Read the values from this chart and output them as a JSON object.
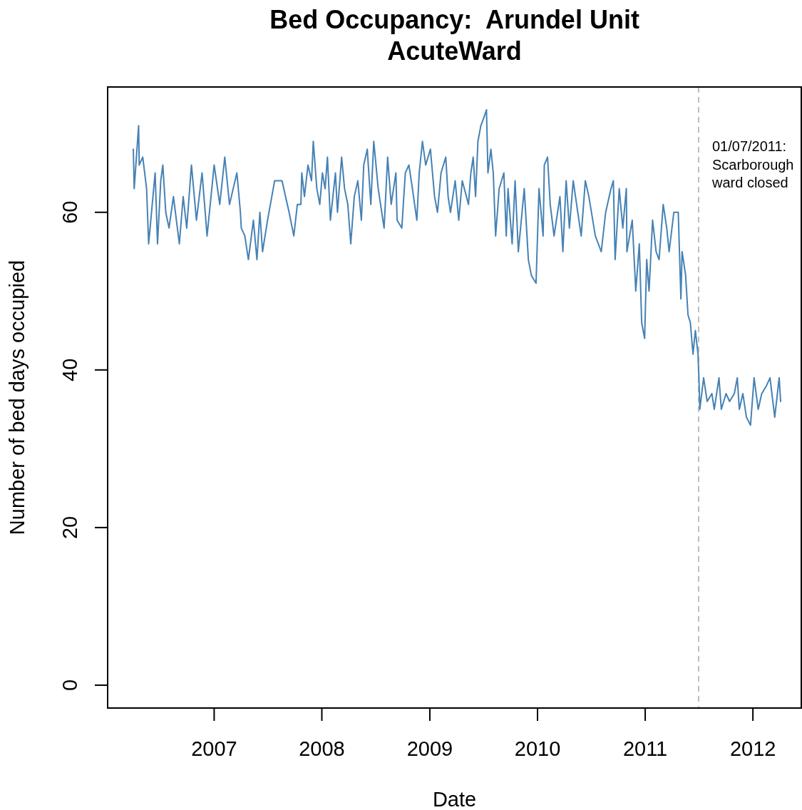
{
  "chart_data": {
    "type": "line",
    "title": "Bed Occupancy:  Arundel Unit\nAcuteWard",
    "xlabel": "Date",
    "ylabel": "Number of bed days occupied",
    "color": "#4682b4",
    "x": [
      "2006-04-02",
      "2006-04-05",
      "2006-04-20",
      "2006-04-22",
      "2006-05-04",
      "2006-05-17",
      "2006-05-24",
      "2006-06-10",
      "2006-06-15",
      "2006-06-23",
      "2006-07-04",
      "2006-07-11",
      "2006-07-21",
      "2006-08-01",
      "2006-08-16",
      "2006-09-05",
      "2006-09-18",
      "2006-09-30",
      "2006-10-16",
      "2006-11-02",
      "2006-11-21",
      "2006-12-08",
      "2007-01-01",
      "2007-01-20",
      "2007-02-06",
      "2007-02-22",
      "2007-03-19",
      "2007-03-31",
      "2007-04-03",
      "2007-04-15",
      "2007-04-27",
      "2007-05-14",
      "2007-05-26",
      "2007-06-05",
      "2007-06-14",
      "2007-07-01",
      "2007-07-25",
      "2007-08-19",
      "2007-09-12",
      "2007-09-28",
      "2007-10-10",
      "2007-10-22",
      "2007-10-25",
      "2007-11-03",
      "2007-11-15",
      "2007-11-27",
      "2007-12-03",
      "2007-12-15",
      "2007-12-25",
      "2008-01-03",
      "2008-01-12",
      "2008-01-20",
      "2008-01-30",
      "2008-02-16",
      "2008-02-23",
      "2008-03-08",
      "2008-03-18",
      "2008-03-29",
      "2008-04-08",
      "2008-04-20",
      "2008-05-02",
      "2008-05-14",
      "2008-05-22",
      "2008-06-03",
      "2008-06-15",
      "2008-06-25",
      "2008-07-10",
      "2008-07-30",
      "2008-08-11",
      "2008-08-23",
      "2008-09-08",
      "2008-09-12",
      "2008-09-28",
      "2008-10-10",
      "2008-10-22",
      "2008-11-03",
      "2008-11-18",
      "2008-11-26",
      "2008-12-07",
      "2008-12-18",
      "2009-01-03",
      "2009-01-17",
      "2009-01-27",
      "2009-02-08",
      "2009-02-24",
      "2009-03-04",
      "2009-03-12",
      "2009-03-28",
      "2009-04-09",
      "2009-04-21",
      "2009-05-12",
      "2009-05-20",
      "2009-05-28",
      "2009-06-05",
      "2009-06-13",
      "2009-06-23",
      "2009-07-03",
      "2009-07-12",
      "2009-07-17",
      "2009-07-27",
      "2009-08-04",
      "2009-08-12",
      "2009-08-24",
      "2009-09-09",
      "2009-09-17",
      "2009-09-23",
      "2009-10-07",
      "2009-10-17",
      "2009-10-28",
      "2009-11-17",
      "2009-12-01",
      "2009-12-11",
      "2009-12-27",
      "2010-01-06",
      "2010-01-20",
      "2010-01-24",
      "2010-02-04",
      "2010-02-13",
      "2010-02-26",
      "2010-03-18",
      "2010-03-28",
      "2010-04-08",
      "2010-04-19",
      "2010-05-02",
      "2010-05-29",
      "2010-06-12",
      "2010-06-24",
      "2010-07-16",
      "2010-08-05",
      "2010-08-20",
      "2010-09-07",
      "2010-09-15",
      "2010-09-21",
      "2010-10-05",
      "2010-10-17",
      "2010-10-29",
      "2010-10-31",
      "2010-11-18",
      "2010-11-30",
      "2010-12-12",
      "2010-12-20",
      "2010-12-30",
      "2011-01-06",
      "2011-01-14",
      "2011-01-26",
      "2011-02-07",
      "2011-02-17",
      "2011-03-03",
      "2011-03-15",
      "2011-03-23",
      "2011-04-08",
      "2011-04-23",
      "2011-05-02",
      "2011-05-06",
      "2011-05-18",
      "2011-05-26",
      "2011-06-03",
      "2011-06-12",
      "2011-06-20",
      "2011-06-29",
      "2011-07-02",
      "2011-07-05",
      "2011-07-18",
      "2011-07-30",
      "2011-08-15",
      "2011-08-23",
      "2011-09-08",
      "2011-09-16",
      "2011-10-02",
      "2011-10-14",
      "2011-10-30",
      "2011-11-09",
      "2011-11-16",
      "2011-11-28",
      "2011-12-10",
      "2011-12-24",
      "2012-01-05",
      "2012-01-19",
      "2012-01-31",
      "2012-02-16",
      "2012-02-28",
      "2012-03-15",
      "2012-03-30",
      "2012-04-04"
    ],
    "values": [
      68,
      63,
      71,
      66,
      67,
      63,
      56,
      63,
      65,
      56,
      64,
      66,
      60,
      58,
      62,
      56,
      62,
      58,
      66,
      59,
      65,
      57,
      66,
      61,
      67,
      61,
      65,
      60,
      58,
      57,
      54,
      59,
      54,
      60,
      55,
      59,
      64,
      64,
      60,
      57,
      61,
      61,
      65,
      62,
      66,
      64,
      69,
      63,
      61,
      65,
      63,
      67,
      59,
      65,
      60,
      67,
      63,
      61,
      56,
      62,
      64,
      59,
      66,
      68,
      61,
      69,
      63,
      58,
      67,
      61,
      65,
      59,
      58,
      65,
      66,
      63,
      59,
      65,
      69,
      66,
      68,
      62,
      60,
      65,
      67,
      62,
      60,
      64,
      59,
      64,
      61,
      65,
      67,
      62,
      69,
      71,
      72,
      73,
      65,
      68,
      65,
      57,
      63,
      65,
      57,
      63,
      56,
      64,
      55,
      63,
      54,
      52,
      51,
      63,
      57,
      66,
      67,
      61,
      57,
      62,
      55,
      64,
      58,
      64,
      57,
      64,
      62,
      57,
      55,
      60,
      63,
      64,
      54,
      63,
      58,
      63,
      55,
      59,
      50,
      56,
      46,
      44,
      54,
      50,
      59,
      55,
      54,
      61,
      58,
      55,
      60,
      60,
      49,
      55,
      52,
      47,
      46,
      42,
      45,
      42,
      39,
      35,
      39,
      36,
      37,
      35,
      39,
      35,
      37,
      36,
      37,
      39,
      35,
      37,
      34,
      33,
      39,
      35,
      37,
      38,
      39,
      34,
      39,
      36
    ],
    "xlim": [
      "2006-01-05",
      "2012-06-13"
    ],
    "xticks": [
      "2007",
      "2008",
      "2009",
      "2010",
      "2011",
      "2012"
    ],
    "ylim": [
      -2.9,
      75.9
    ],
    "yticks": [
      0,
      20,
      40,
      60
    ],
    "ref_lines": [
      {
        "axis": "x",
        "value": "2011-07-01",
        "label": "01/07/2011:\nScarborough\nward closed",
        "color": "#bebebe",
        "line_style": "dashed"
      }
    ]
  }
}
